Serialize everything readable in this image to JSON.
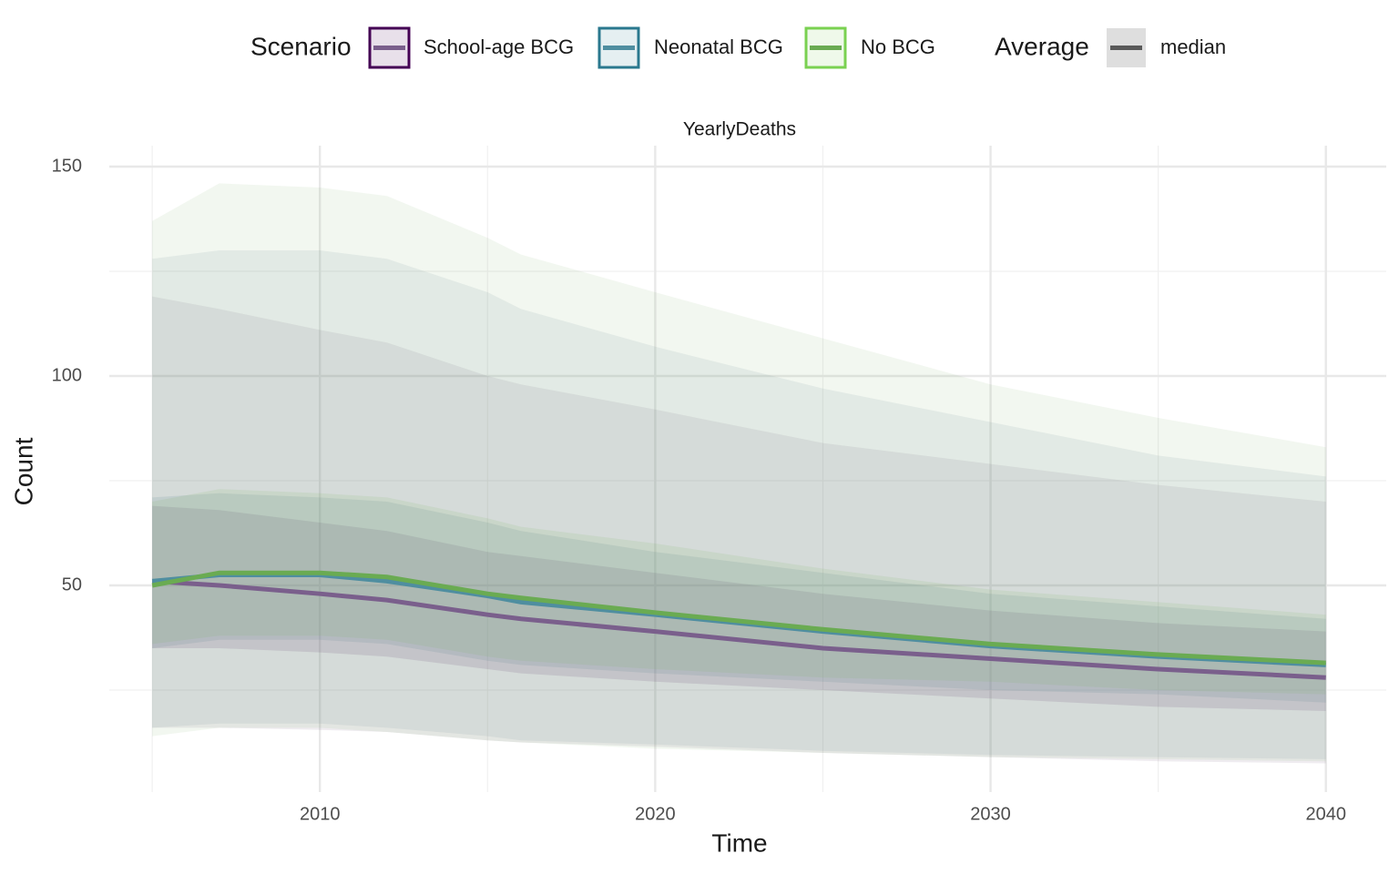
{
  "chart_data": {
    "type": "line",
    "facet": "YearlyDeaths",
    "x_label": "Time",
    "y_label": "Count",
    "legend_title": "Scenario",
    "average_legend_title": "Average",
    "average_legend_label": "median",
    "average_color": "#5a5a5a",
    "x": [
      2005,
      2007,
      2010,
      2012,
      2015,
      2016,
      2020,
      2025,
      2030,
      2035,
      2040
    ],
    "xlim": [
      2003.72,
      2041.8
    ],
    "xticks": [
      2010,
      2020,
      2030,
      2040
    ],
    "xminor": [
      2005,
      2015,
      2025,
      2035
    ],
    "ylim": [
      0.65,
      155
    ],
    "yticks": [
      50,
      100,
      150
    ],
    "yminor": [
      25,
      75,
      125
    ],
    "grid": true,
    "series": [
      {
        "name": "School-age BCG",
        "color": "#440154",
        "line_color": "#7a5f8c",
        "values": [
          51,
          50,
          48,
          46.5,
          43,
          42,
          39,
          35,
          32.5,
          30,
          28
        ],
        "inner_lower": [
          35,
          35,
          34,
          33,
          30,
          29,
          27,
          25,
          23,
          21,
          20
        ],
        "inner_upper": [
          69,
          68,
          65,
          63,
          58,
          57,
          53,
          48,
          44,
          41,
          39
        ],
        "outer_lower": [
          16,
          16,
          15.5,
          15,
          13,
          12.5,
          11.5,
          10,
          9,
          8,
          7.5
        ],
        "outer_upper": [
          119,
          116,
          111,
          108,
          100,
          98,
          92,
          84,
          79,
          74,
          70
        ]
      },
      {
        "name": "Neonatal BCG",
        "color": "#2a788e",
        "line_color": "#4f8ea0",
        "values": [
          51,
          52.5,
          52.5,
          51,
          47.5,
          46,
          43,
          39,
          35.5,
          33,
          31
        ],
        "inner_lower": [
          35,
          37,
          37,
          36,
          32,
          31,
          29,
          27,
          25,
          24,
          22
        ],
        "inner_upper": [
          71,
          72,
          71,
          70,
          65,
          63,
          58,
          53,
          48,
          45,
          42
        ],
        "outer_lower": [
          16,
          17,
          17,
          16,
          14,
          13,
          12,
          10.5,
          9.5,
          9,
          8.5
        ],
        "outer_upper": [
          128,
          130,
          130,
          128,
          120,
          116,
          107,
          97,
          89,
          81,
          76
        ]
      },
      {
        "name": "No BCG",
        "color": "#7ad151",
        "line_color": "#6aab52",
        "values": [
          50,
          53,
          53,
          52,
          48,
          47,
          43.5,
          39.5,
          36,
          33.5,
          31.5
        ],
        "inner_lower": [
          36,
          38,
          38,
          37,
          33,
          32,
          30,
          28,
          27,
          25,
          24
        ],
        "inner_upper": [
          70,
          73,
          72,
          71,
          66,
          64,
          60,
          54,
          49,
          46,
          43
        ],
        "outer_lower": [
          14,
          16,
          16,
          15,
          13,
          12.5,
          11,
          10,
          9,
          8.5,
          8
        ],
        "outer_upper": [
          137,
          146,
          145,
          143,
          133,
          129,
          120,
          109,
          98,
          90,
          83
        ]
      }
    ]
  }
}
